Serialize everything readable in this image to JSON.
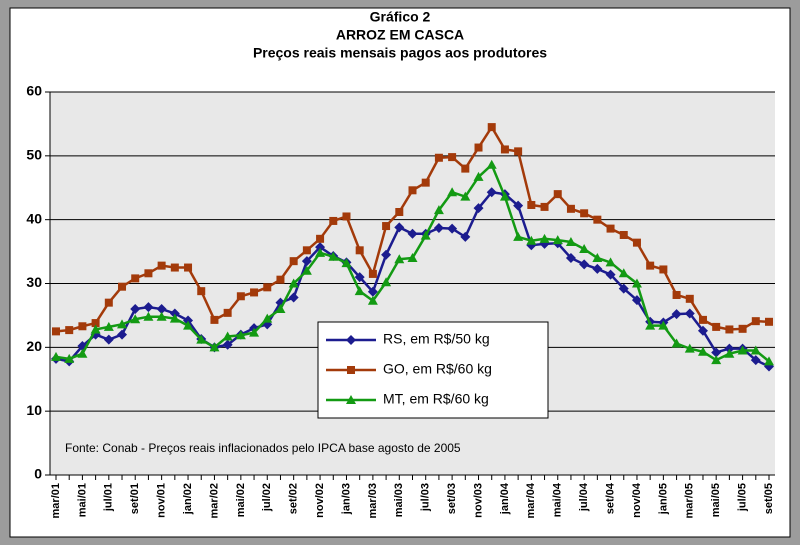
{
  "chart_data": {
    "type": "line",
    "title_lines": [
      "Gráfico 2",
      "ARROZ EM CASCA",
      "Preços reais mensais pagos aos produtores"
    ],
    "source": "Fonte: Conab - Preços reais inflacionados pelo IPCA base agosto de 2005",
    "categories": [
      "mar/01",
      null,
      "mai/01",
      null,
      "jul/01",
      null,
      "set/01",
      null,
      "nov/01",
      null,
      "jan/02",
      null,
      "mar/02",
      null,
      "mai/02",
      null,
      "jul/02",
      null,
      "set/02",
      null,
      "nov/02",
      null,
      "jan/03",
      null,
      "mar/03",
      null,
      "mai/03",
      null,
      "jul/03",
      null,
      "set/03",
      null,
      "nov/03",
      null,
      "jan/04",
      null,
      "mar/04",
      null,
      "mai/04",
      null,
      "jul/04",
      null,
      "set/04",
      null,
      "nov/04",
      null,
      "jan/05",
      null,
      "mar/05",
      null,
      "mai/05",
      null,
      "jul/05",
      null,
      "set/05"
    ],
    "series": [
      {
        "name": "RS, em R$/50 kg",
        "color": "#1c1c8f",
        "marker": "diamond",
        "values": [
          18.2,
          17.8,
          20.2,
          22.0,
          21.2,
          22.0,
          26.0,
          26.3,
          26.0,
          25.3,
          24.2,
          21.3,
          20.0,
          20.4,
          22.0,
          23.0,
          23.6,
          27.0,
          27.8,
          33.5,
          35.7,
          34.3,
          33.3,
          31.0,
          28.7,
          34.5,
          38.8,
          37.8,
          37.8,
          38.7,
          38.6,
          37.3,
          41.8,
          44.3,
          44.0,
          42.2,
          36.0,
          36.2,
          36.3,
          34.0,
          33.0,
          32.3,
          31.4,
          29.2,
          27.4,
          24.0,
          23.9,
          25.2,
          25.3,
          22.6,
          19.2,
          19.8,
          19.8,
          18.0,
          17.0
        ]
      },
      {
        "name": "GO, em R$/60 kg",
        "color": "#a33a0a",
        "marker": "square",
        "values": [
          22.5,
          22.7,
          23.3,
          23.8,
          27.0,
          29.5,
          30.8,
          31.6,
          32.8,
          32.5,
          32.5,
          28.8,
          24.3,
          25.4,
          28.0,
          28.6,
          29.4,
          30.6,
          33.5,
          35.2,
          37.0,
          39.8,
          40.5,
          35.2,
          31.5,
          39.0,
          41.2,
          44.6,
          45.8,
          49.7,
          49.8,
          48.0,
          51.3,
          54.5,
          51.0,
          50.7,
          42.3,
          42.0,
          44.0,
          41.7,
          41.0,
          40.0,
          38.6,
          37.6,
          36.4,
          32.8,
          32.2,
          28.2,
          27.6,
          24.3,
          23.2,
          22.8,
          22.9,
          24.1,
          24.0
        ]
      },
      {
        "name": "MT, em R$/60 kg",
        "color": "#139a13",
        "marker": "triangle",
        "values": [
          18.5,
          18.2,
          19.0,
          22.8,
          23.2,
          23.6,
          24.4,
          24.8,
          24.8,
          24.5,
          23.4,
          21.2,
          20.0,
          21.7,
          21.9,
          22.3,
          24.5,
          26.0,
          30.0,
          32.0,
          34.8,
          34.2,
          33.2,
          28.8,
          27.3,
          30.2,
          33.8,
          34.0,
          37.5,
          41.5,
          44.3,
          43.6,
          46.7,
          48.6,
          43.6,
          37.3,
          36.7,
          37.0,
          36.8,
          36.5,
          35.4,
          34.0,
          33.3,
          31.6,
          30.0,
          23.4,
          23.4,
          20.6,
          19.8,
          19.3,
          18.0,
          19.0,
          19.5,
          19.5,
          17.8
        ]
      }
    ],
    "ylim": [
      0,
      60
    ],
    "yticks": [
      0,
      10,
      20,
      30,
      40,
      50,
      60
    ],
    "grid": true
  }
}
